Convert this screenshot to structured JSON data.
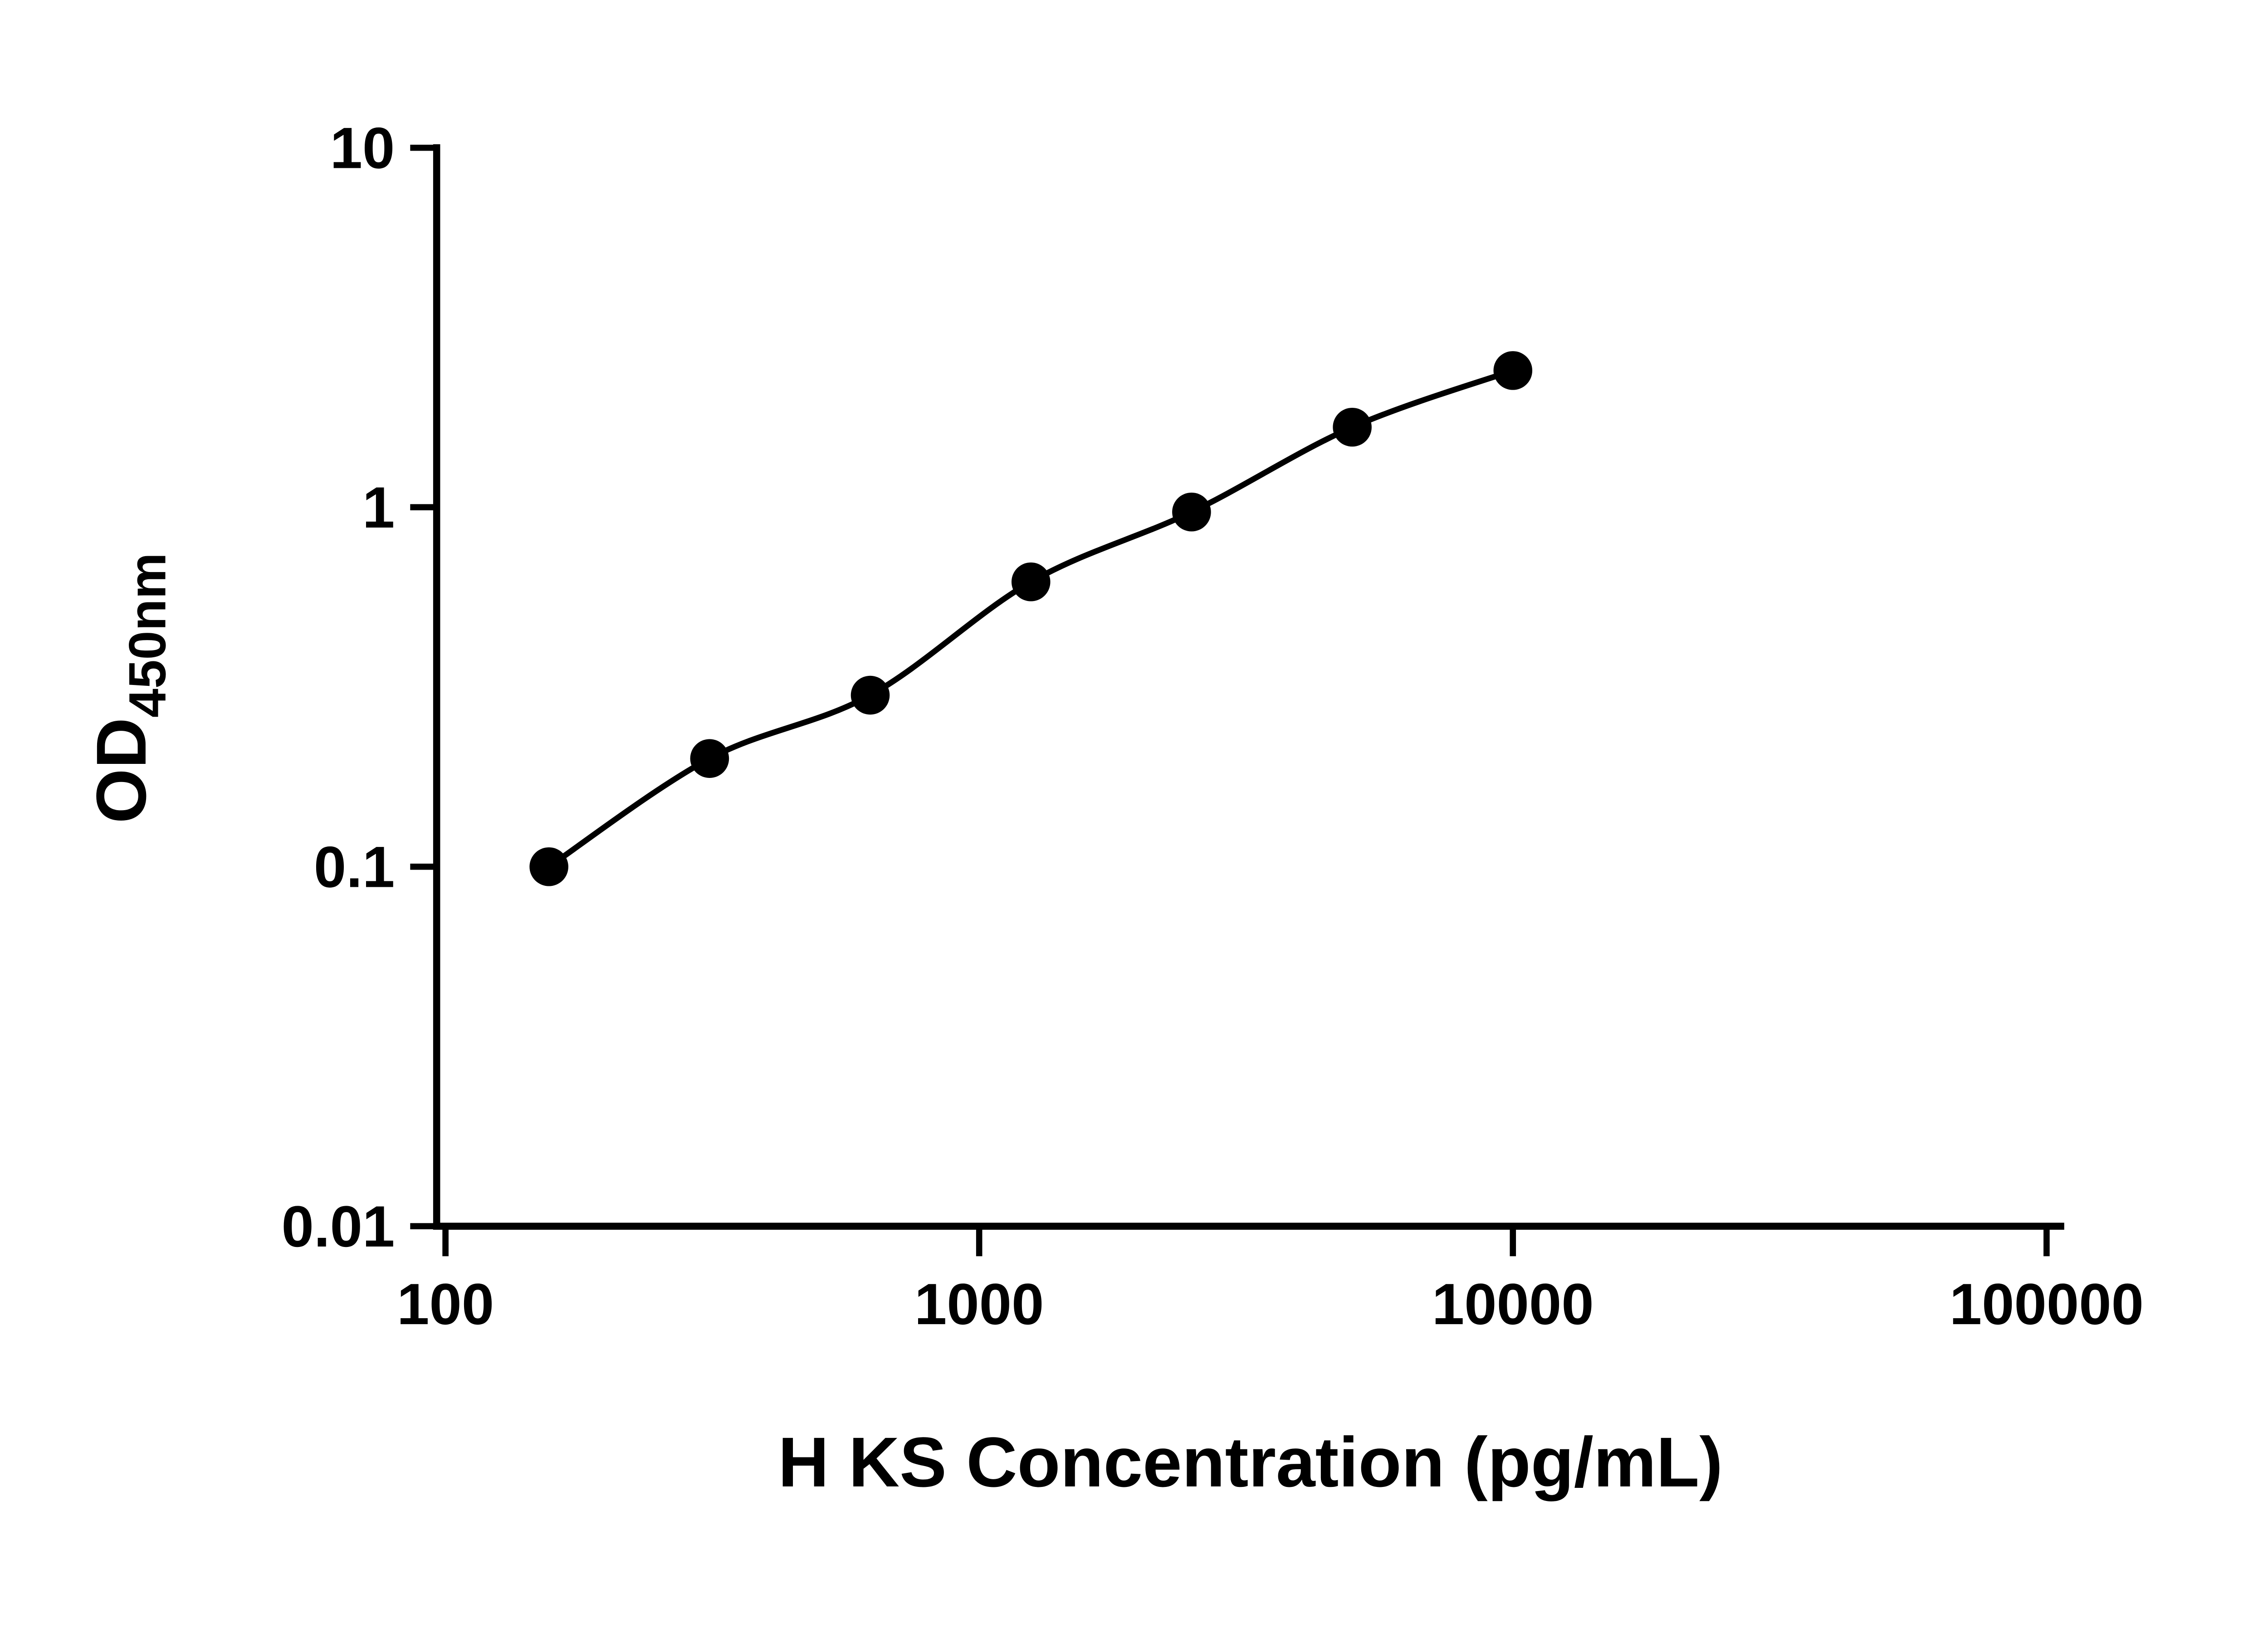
{
  "chart_data": {
    "type": "scatter",
    "title": "",
    "xlabel": "H KS Concentration (pg/mL)",
    "ylabel_main": "OD",
    "ylabel_sub": "450nm",
    "x_scale": "log",
    "y_scale": "log",
    "xlim": [
      100,
      100000
    ],
    "ylim": [
      0.01,
      10
    ],
    "x_ticks": [
      100,
      1000,
      10000,
      100000
    ],
    "x_tick_labels": [
      "100",
      "1000",
      "10000",
      "100000"
    ],
    "y_ticks": [
      0.01,
      0.1,
      1,
      10
    ],
    "y_tick_labels": [
      "0.01",
      "0.1",
      "1",
      "10"
    ],
    "grid": false,
    "legend": false,
    "curve_through_points": true,
    "marker_color": "#000000",
    "line_color": "#000000",
    "axis_color": "#000000",
    "background_color": "#ffffff",
    "points": [
      {
        "x": 156.25,
        "y": 0.1
      },
      {
        "x": 312.5,
        "y": 0.2
      },
      {
        "x": 625,
        "y": 0.3
      },
      {
        "x": 1250,
        "y": 0.62
      },
      {
        "x": 2500,
        "y": 0.97
      },
      {
        "x": 5000,
        "y": 1.67
      },
      {
        "x": 10000,
        "y": 2.4
      }
    ]
  }
}
